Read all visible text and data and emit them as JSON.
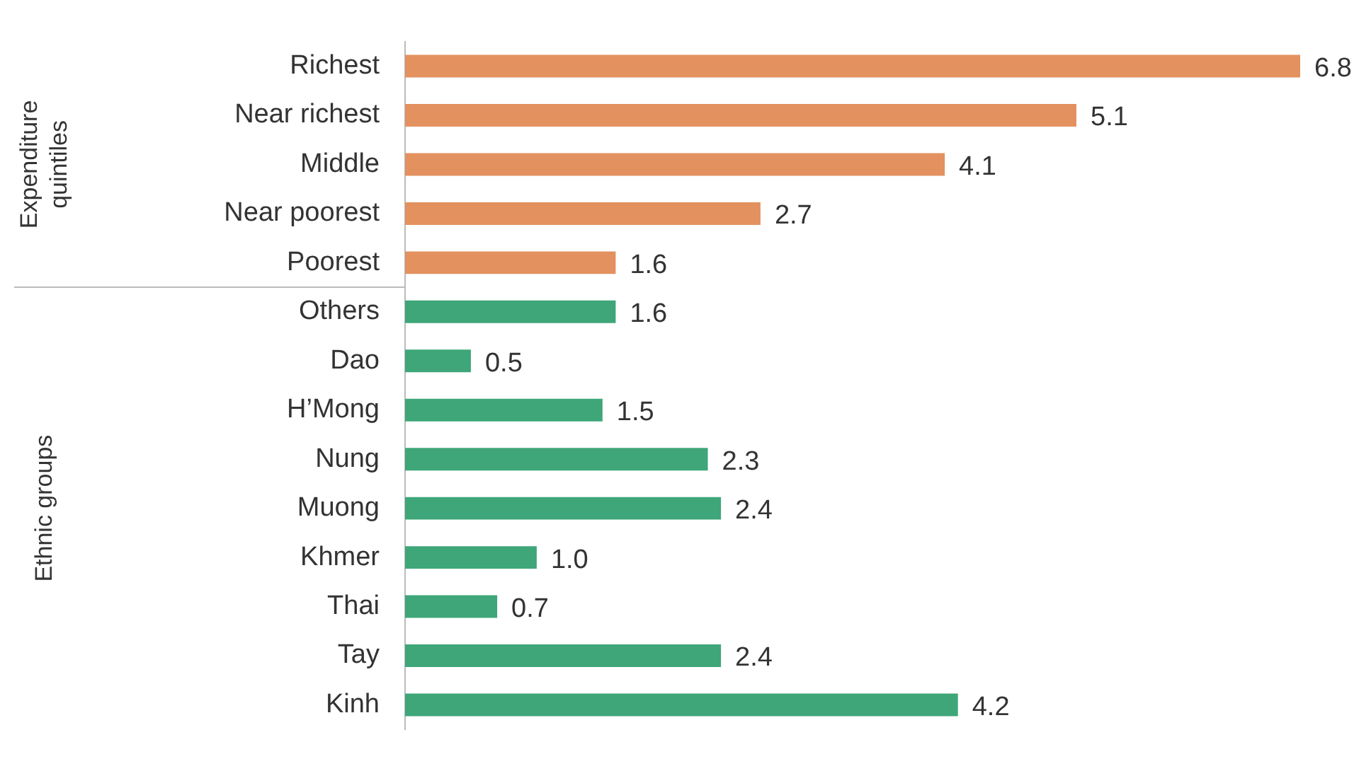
{
  "chart_data": {
    "type": "bar",
    "orientation": "horizontal",
    "categories": [
      "Richest",
      "Near richest",
      "Middle",
      "Near poorest",
      "Poorest",
      "Others",
      "Dao",
      "H’Mong",
      "Nung",
      "Muong",
      "Khmer",
      "Thai",
      "Tay",
      "Kinh"
    ],
    "values": [
      6.8,
      5.1,
      4.1,
      2.7,
      1.6,
      1.6,
      0.5,
      1.5,
      2.3,
      2.4,
      1.0,
      0.7,
      2.4,
      4.2
    ],
    "colors": [
      "#e3915f",
      "#e3915f",
      "#e3915f",
      "#e3915f",
      "#e3915f",
      "#3ea679",
      "#3ea679",
      "#3ea679",
      "#3ea679",
      "#3ea679",
      "#3ea679",
      "#3ea679",
      "#3ea679",
      "#3ea679"
    ],
    "value_labels": [
      "6.8",
      "5.1",
      "4.1",
      "2.7",
      "1.6",
      "1.6",
      "0.5",
      "1.5",
      "2.3",
      "2.4",
      "1.0",
      "0.7",
      "2.4",
      "4.2"
    ],
    "annotations": [
      "Expenditure quintiles",
      "Ethnic groups"
    ],
    "grid": false,
    "legend": false
  }
}
